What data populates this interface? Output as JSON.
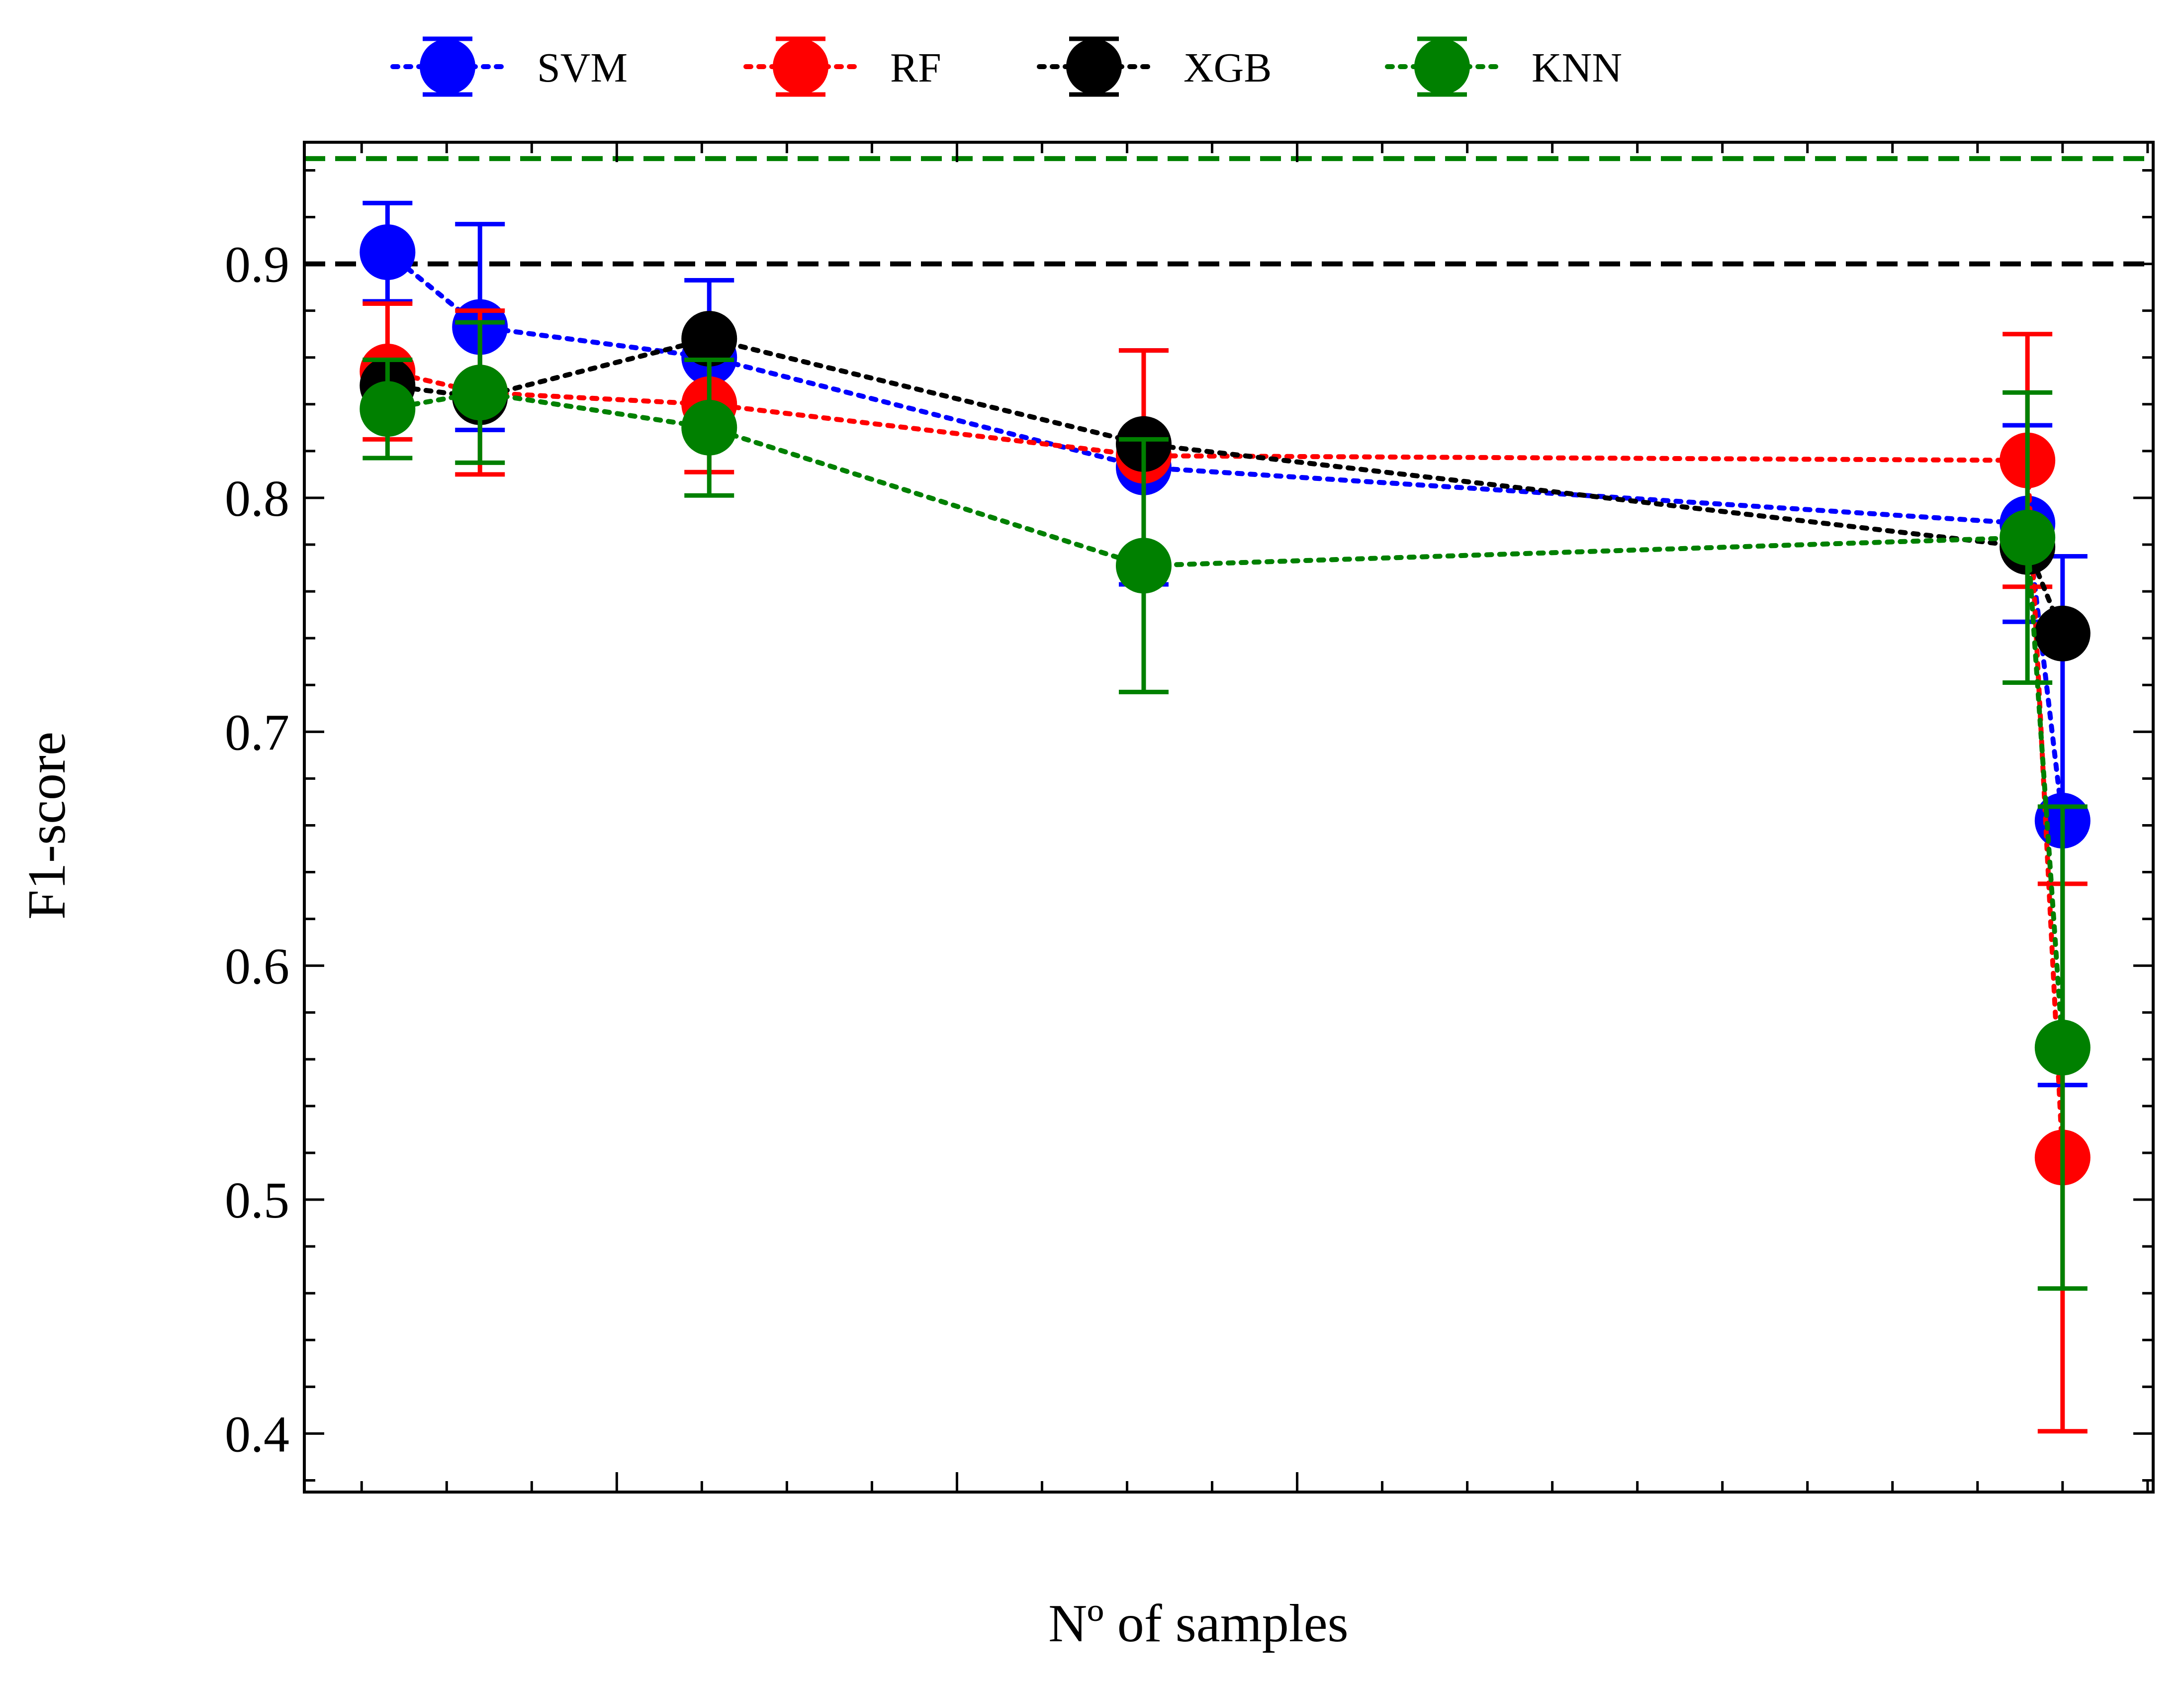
{
  "chart_data": {
    "type": "line",
    "xlabel": "Nº of samples",
    "ylabel": "F1-score",
    "xlim": [
      0,
      100
    ],
    "ylim": [
      0.375,
      0.952
    ],
    "yticks": [
      0.4,
      0.5,
      0.6,
      0.7,
      0.8,
      0.9
    ],
    "ytick_labels": [
      "0.4",
      "0.5",
      "0.6",
      "0.7",
      "0.8",
      "0.9"
    ],
    "y_minor_step": 0.02,
    "xticks_major": [
      16.9,
      35.3,
      53.7,
      72.2,
      90.6
    ],
    "x_minor_step": 4.6,
    "grid": false,
    "legend_position": "top, outside plot, one row",
    "reference_lines": [
      {
        "y": 0.945,
        "color": "#008000",
        "style": "dashed"
      },
      {
        "y": 0.9,
        "color": "#000000",
        "style": "dashed"
      }
    ],
    "series": [
      {
        "name": "SVM",
        "color": "#0000ff",
        "x": [
          4.5,
          9.5,
          21.9,
          45.4,
          93.2,
          95.1
        ],
        "y": [
          0.905,
          0.873,
          0.86,
          0.813,
          0.789,
          0.662
        ],
        "yerr": [
          0.021,
          0.044,
          0.033,
          0.05,
          0.042,
          0.113
        ]
      },
      {
        "name": "RF",
        "color": "#ff0000",
        "x": [
          4.5,
          9.5,
          21.9,
          45.4,
          93.2,
          95.1
        ],
        "y": [
          0.854,
          0.845,
          0.84,
          0.818,
          0.816,
          0.518
        ],
        "yerr": [
          0.029,
          0.035,
          0.029,
          0.045,
          0.054,
          0.117
        ]
      },
      {
        "name": "XGB",
        "color": "#000000",
        "x": [
          4.5,
          9.5,
          21.9,
          45.4,
          93.2,
          95.1
        ],
        "y": [
          0.848,
          0.843,
          0.868,
          0.823,
          0.779,
          0.742
        ],
        "yerr": [
          0.0,
          0.0,
          0.0,
          0.0,
          0.0,
          0.0
        ]
      },
      {
        "name": "KNN",
        "color": "#008000",
        "x": [
          4.5,
          9.5,
          21.9,
          45.4,
          93.2,
          95.1
        ],
        "y": [
          0.838,
          0.845,
          0.83,
          0.771,
          0.783,
          0.565
        ],
        "yerr": [
          0.021,
          0.03,
          0.029,
          0.054,
          0.062,
          0.103
        ]
      }
    ]
  }
}
